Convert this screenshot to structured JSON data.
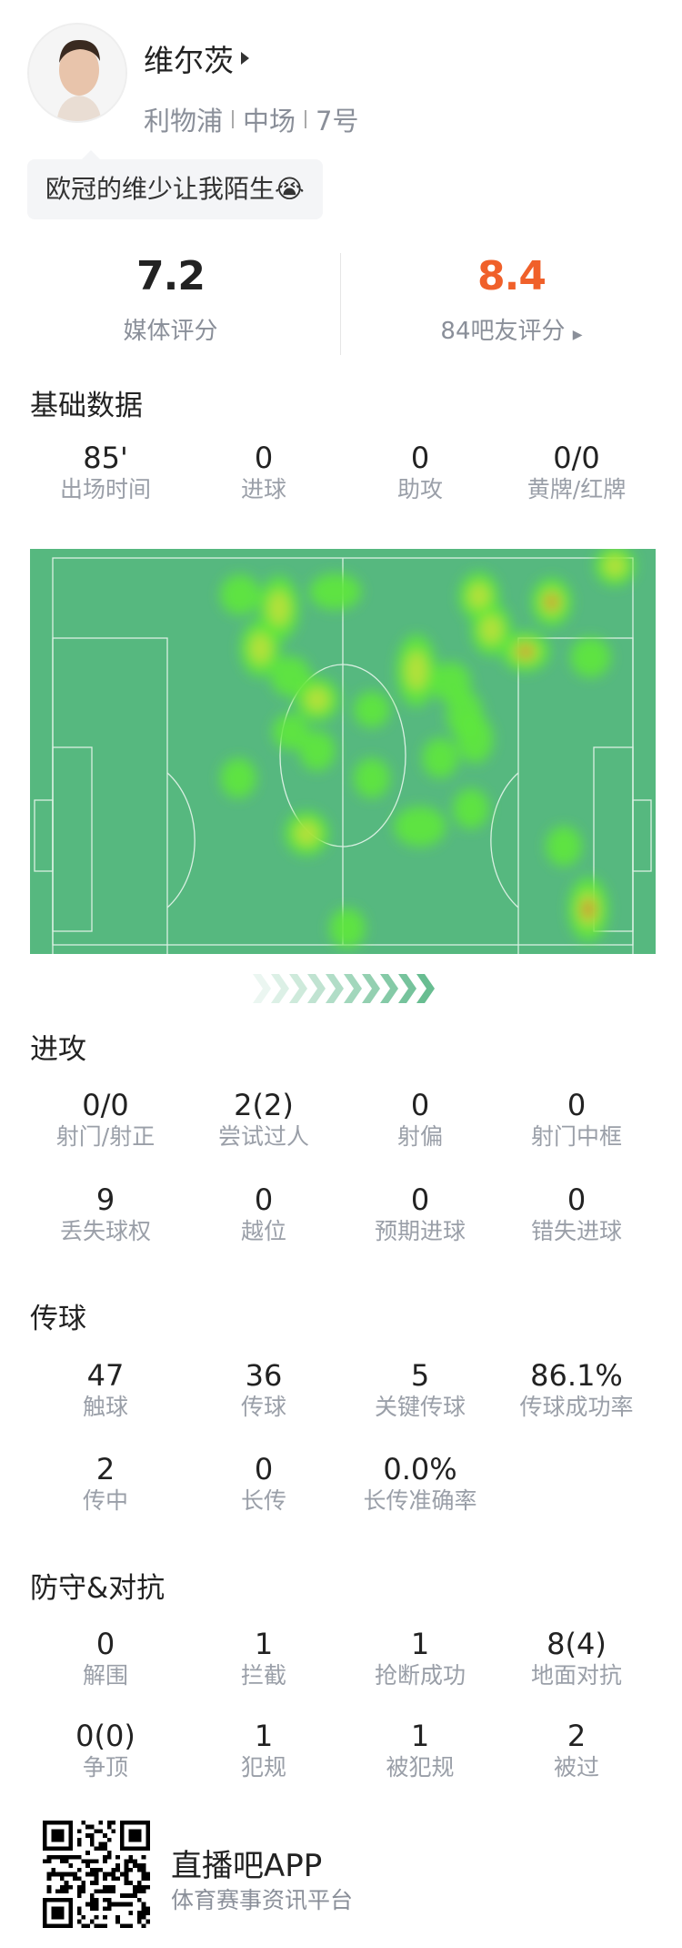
{
  "player": {
    "name": "维尔茨",
    "team": "利物浦",
    "position": "中场",
    "number": "7号"
  },
  "comment": "欧冠的维少让我陌生😭",
  "ratings": {
    "media": {
      "value": "7.2",
      "label": "媒体评分"
    },
    "fans": {
      "value": "8.4",
      "label": "84吧友评分",
      "color": "#f0602a"
    }
  },
  "sections": [
    {
      "title": "基础数据",
      "rows": [
        [
          {
            "v": "85'",
            "l": "出场时间"
          },
          {
            "v": "0",
            "l": "进球"
          },
          {
            "v": "0",
            "l": "助攻"
          },
          {
            "v": "0/0",
            "l": "黄牌/红牌"
          }
        ]
      ]
    },
    {
      "title": "进攻",
      "rows": [
        [
          {
            "v": "0/0",
            "l": "射门/射正"
          },
          {
            "v": "2(2)",
            "l": "尝试过人"
          },
          {
            "v": "0",
            "l": "射偏"
          },
          {
            "v": "0",
            "l": "射门中框"
          }
        ],
        [
          {
            "v": "9",
            "l": "丢失球权"
          },
          {
            "v": "0",
            "l": "越位"
          },
          {
            "v": "0",
            "l": "预期进球"
          },
          {
            "v": "0",
            "l": "错失进球"
          }
        ]
      ]
    },
    {
      "title": "传球",
      "rows": [
        [
          {
            "v": "47",
            "l": "触球"
          },
          {
            "v": "36",
            "l": "传球"
          },
          {
            "v": "5",
            "l": "关键传球"
          },
          {
            "v": "86.1%",
            "l": "传球成功率"
          }
        ],
        [
          {
            "v": "2",
            "l": "传中"
          },
          {
            "v": "0",
            "l": "长传"
          },
          {
            "v": "0.0%",
            "l": "长传准确率"
          }
        ]
      ]
    },
    {
      "title": "防守&对抗",
      "rows": [
        [
          {
            "v": "0",
            "l": "解围"
          },
          {
            "v": "1",
            "l": "拦截"
          },
          {
            "v": "1",
            "l": "抢断成功"
          },
          {
            "v": "8(4)",
            "l": "地面对抗"
          }
        ],
        [
          {
            "v": "0(0)",
            "l": "争顶"
          },
          {
            "v": "1",
            "l": "犯规"
          },
          {
            "v": "1",
            "l": "被犯规"
          },
          {
            "v": "2",
            "l": "被过"
          }
        ]
      ]
    }
  ],
  "footer": {
    "app": "直播吧APP",
    "tagline": "体育赛事资讯平台"
  },
  "colors": {
    "pitch": "#56b87f",
    "accent": "#f0602a",
    "arrow": "#5cb889"
  }
}
